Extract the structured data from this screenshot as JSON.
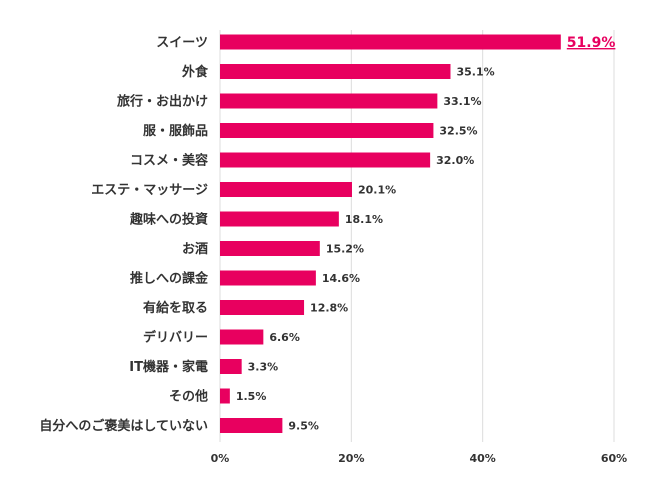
{
  "chart_data": {
    "type": "bar",
    "orientation": "horizontal",
    "categories": [
      "スイーツ",
      "外食",
      "旅行・お出かけ",
      "服・服飾品",
      "コスメ・美容",
      "エステ・マッサージ",
      "趣味への投資",
      "お酒",
      "推しへの課金",
      "有給を取る",
      "デリバリー",
      "IT機器・家電",
      "その他",
      "自分へのご褒美はしていない"
    ],
    "values": [
      51.9,
      35.1,
      33.1,
      32.5,
      32.0,
      20.1,
      18.1,
      15.2,
      14.6,
      12.8,
      6.6,
      3.3,
      1.5,
      9.5
    ],
    "value_labels": [
      "51.9%",
      "35.1%",
      "33.1%",
      "32.5%",
      "32.0%",
      "20.1%",
      "18.1%",
      "15.2%",
      "14.6%",
      "12.8%",
      "6.6%",
      "3.3%",
      "1.5%",
      "9.5%"
    ],
    "highlight_index": 0,
    "xlim": [
      0,
      60
    ],
    "xticks": [
      0,
      20,
      40,
      60
    ],
    "xtick_labels": [
      "0%",
      "20%",
      "40%",
      "60%"
    ],
    "title": "",
    "xlabel": "",
    "ylabel": "",
    "grid": "vertical",
    "bar_color": "#e8005f",
    "highlight_color": "#e8005f"
  }
}
